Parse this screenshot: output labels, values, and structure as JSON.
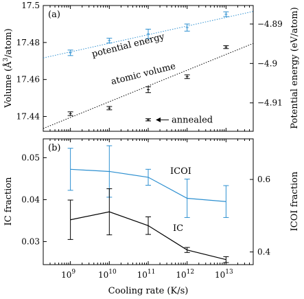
{
  "chart_data": [
    {
      "type": "scatter",
      "panel_label": "(a)",
      "xscale": "log",
      "x": [
        1000000000,
        10000000000,
        100000000000,
        1000000000000,
        10000000000000
      ],
      "xticklabels": [
        "10",
        "10",
        "10",
        "10",
        "10"
      ],
      "xtickexponents": [
        "9",
        "10",
        "11",
        "12",
        "13"
      ],
      "xlim": [
        200000000,
        50000000000000
      ],
      "ylabel_left_main": "Volume (Å",
      "ylabel_left_sup": "3",
      "ylabel_left_tail": "/atom)",
      "ylim_left": [
        17.432,
        17.5
      ],
      "yticks_left": [
        17.44,
        17.46,
        17.48,
        17.5
      ],
      "yticklabels_left": [
        "17.44",
        "17.46",
        "17.48",
        "17.5"
      ],
      "ylabel_right": "Potential energy (eV/atom)",
      "ylim_right": [
        -4.9172,
        -4.8853
      ],
      "yticks_right": [
        -4.91,
        -4.9,
        -4.89
      ],
      "yticklabels_right": [
        "−4.91",
        "−4.9",
        "−4.89"
      ],
      "series": [
        {
          "name": "potential energy",
          "axis": "right",
          "color": "#2c8fd0",
          "values": [
            -4.8973,
            -4.8942,
            -4.8925,
            -4.8909,
            -4.8875
          ],
          "errors": [
            0.0007,
            0.0006,
            0.0012,
            0.0009,
            0.0006
          ],
          "fit": [
            [
              200000000,
              -4.8986
            ],
            [
              50000000000000,
              -4.8868
            ]
          ]
        },
        {
          "name": "atomic volume",
          "axis": "left",
          "color": "#000000",
          "values": [
            17.4415,
            17.4445,
            17.4545,
            17.4615,
            17.4775
          ],
          "errors": [
            0.001,
            0.0009,
            0.0016,
            0.001,
            0.0008
          ],
          "fit": [
            [
              200000000,
              17.4335
            ],
            [
              50000000000000,
              17.4795
            ]
          ]
        }
      ],
      "annotation": {
        "label": "annealed",
        "x": 100000000000,
        "y": 17.4382,
        "error": 0.0006,
        "color": "#000000"
      }
    },
    {
      "type": "line",
      "panel_label": "(b)",
      "xscale": "log",
      "x": [
        1000000000,
        10000000000,
        100000000000,
        1000000000000,
        10000000000000
      ],
      "xticklabels": [
        "10",
        "10",
        "10",
        "10",
        "10"
      ],
      "xtickexponents": [
        "9",
        "10",
        "11",
        "12",
        "13"
      ],
      "xlim": [
        200000000,
        50000000000000
      ],
      "xlabel": "Cooling rate (K/s)",
      "ylabel_left": "IC fraction",
      "ylim_left": [
        0.0245,
        0.0545
      ],
      "yticks_left": [
        0.03,
        0.04,
        0.05
      ],
      "yticklabels_left": [
        "0.03",
        "0.04",
        "0.05"
      ],
      "ylabel_right": "ICOI fraction",
      "ylim_right": [
        0.365,
        0.712
      ],
      "yticks_right": [
        0.4,
        0.6
      ],
      "yticklabels_right": [
        "0.4",
        "0.6"
      ],
      "series": [
        {
          "name": "ICOI",
          "axis": "right",
          "color": "#2c8fd0",
          "values": [
            0.628,
            0.622,
            0.606,
            0.548,
            0.539
          ],
          "errors": [
            0.058,
            0.071,
            0.022,
            0.053,
            0.044
          ]
        },
        {
          "name": "IC",
          "axis": "left",
          "color": "#000000",
          "values": [
            0.0352,
            0.0371,
            0.0338,
            0.028,
            0.0257
          ],
          "errors": [
            0.0047,
            0.0055,
            0.0021,
            0.0006,
            0.0007
          ]
        }
      ]
    }
  ]
}
